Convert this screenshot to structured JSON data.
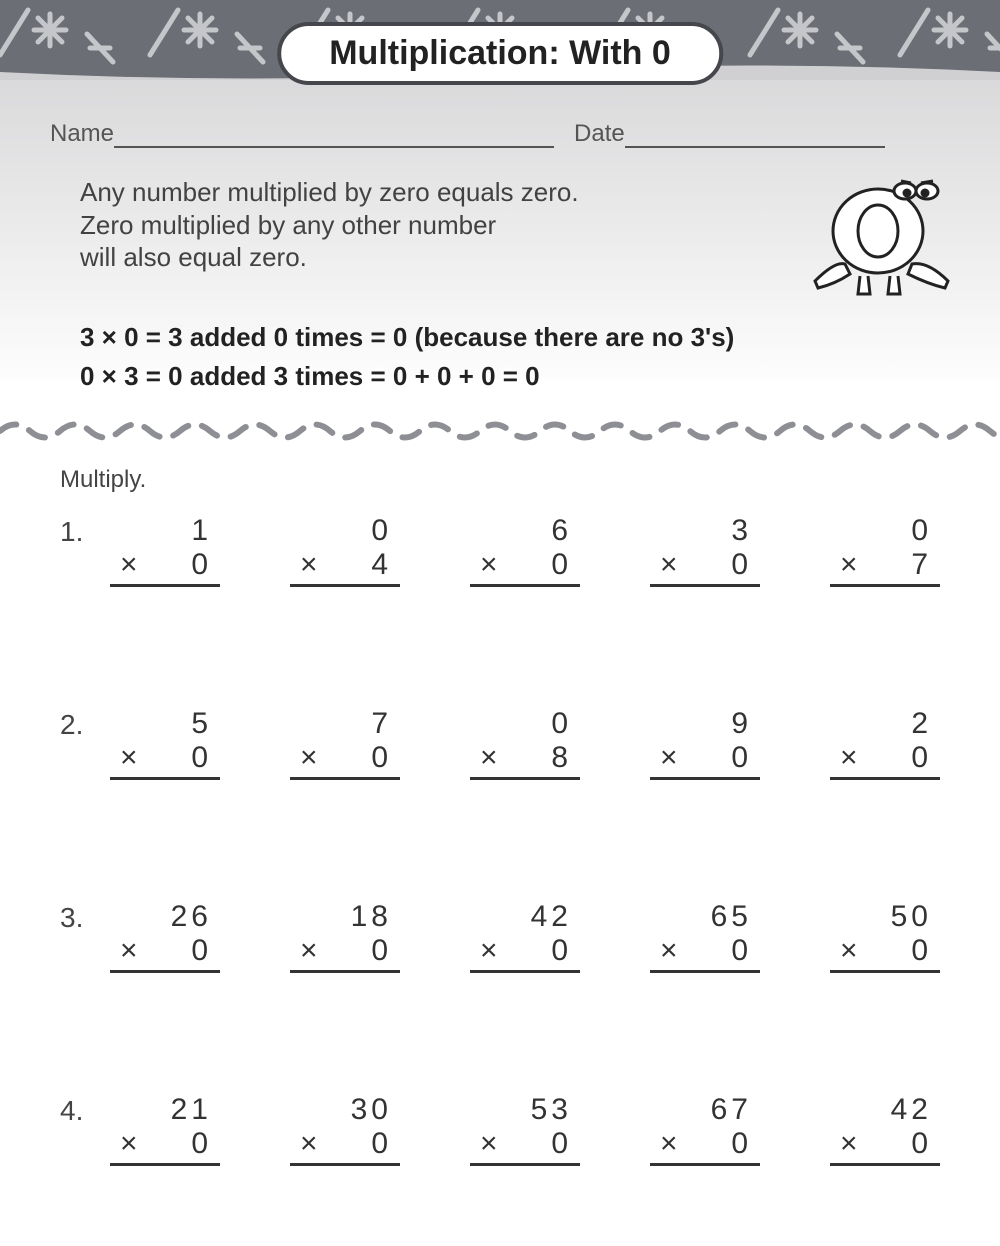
{
  "title": "Multiplication: With 0",
  "labels": {
    "name": "Name",
    "date": "Date"
  },
  "intro": {
    "line1": "Any number multiplied by zero equals zero.",
    "line2": "Zero multiplied by any other number",
    "line3": "will also equal zero."
  },
  "examples": {
    "ex1": "3 × 0 = 3 added 0 times = 0 (because there are no 3's)",
    "ex2": "0 × 3 = 0 added 3 times = 0 + 0 + 0 = 0"
  },
  "instruction": "Multiply.",
  "multiply_symbol": "×",
  "colors": {
    "text": "#3b3b3b",
    "strong": "#222222",
    "line": "#555555",
    "pattern_bg": "#6b6e74",
    "pattern_stroke": "#d3d4d8"
  },
  "fonts": {
    "body": "Futura / Century Gothic, ~26px",
    "title": "Arial Black, ~34px",
    "problems": "~30px"
  },
  "rows": [
    {
      "n": "1.",
      "problems": [
        {
          "top": "1",
          "bot": "0"
        },
        {
          "top": "0",
          "bot": "4"
        },
        {
          "top": "6",
          "bot": "0"
        },
        {
          "top": "3",
          "bot": "0"
        },
        {
          "top": "0",
          "bot": "7"
        }
      ]
    },
    {
      "n": "2.",
      "problems": [
        {
          "top": "5",
          "bot": "0"
        },
        {
          "top": "7",
          "bot": "0"
        },
        {
          "top": "0",
          "bot": "8"
        },
        {
          "top": "9",
          "bot": "0"
        },
        {
          "top": "2",
          "bot": "0"
        }
      ]
    },
    {
      "n": "3.",
      "problems": [
        {
          "top": "26",
          "bot": "0"
        },
        {
          "top": "18",
          "bot": "0"
        },
        {
          "top": "42",
          "bot": "0"
        },
        {
          "top": "65",
          "bot": "0"
        },
        {
          "top": "50",
          "bot": "0"
        }
      ]
    },
    {
      "n": "4.",
      "problems": [
        {
          "top": "21",
          "bot": "0"
        },
        {
          "top": "30",
          "bot": "0"
        },
        {
          "top": "53",
          "bot": "0"
        },
        {
          "top": "67",
          "bot": "0"
        },
        {
          "top": "42",
          "bot": "0"
        }
      ]
    }
  ]
}
